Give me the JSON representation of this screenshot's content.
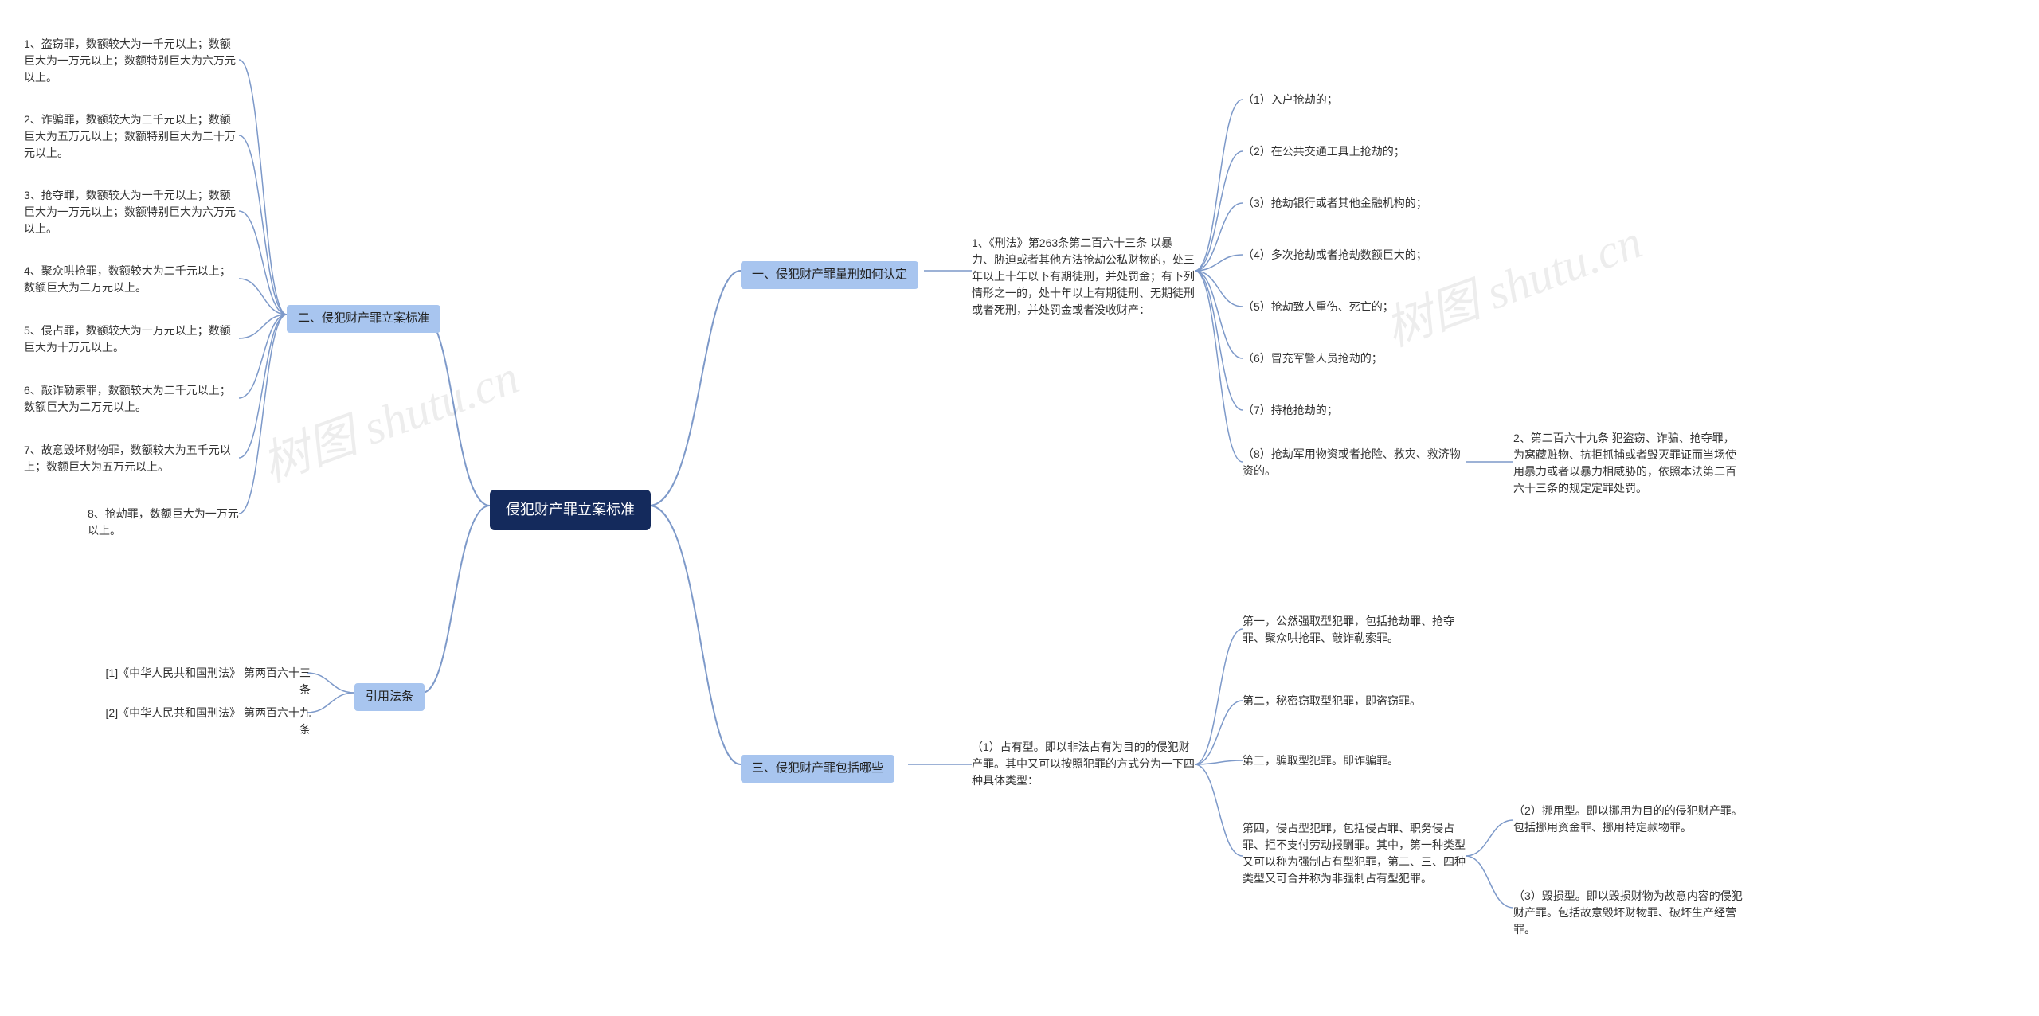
{
  "root": {
    "label": "侵犯财产罪立案标准",
    "bg_color": "#142a5c",
    "text_color": "#ffffff"
  },
  "section_style": {
    "bg_color": "#a8c5ef",
    "text_color": "#222222"
  },
  "connector_color": "#7d99c9",
  "background_color": "#ffffff",
  "watermark_text": "树图 shutu.cn",
  "section1": {
    "label": "一、侵犯财产罪量刑如何认定",
    "detail": "1、《刑法》第263条第二百六十三条 以暴力、胁迫或者其他方法抢劫公私财物的，处三年以上十年以下有期徒刑，并处罚金；有下列情形之一的，处十年以上有期徒刑、无期徒刑或者死刑，并处罚金或者没收财产：",
    "items": [
      "（1）入户抢劫的；",
      "（2）在公共交通工具上抢劫的；",
      "（3）抢劫银行或者其他金融机构的；",
      "（4）多次抢劫或者抢劫数额巨大的；",
      "（5）抢劫致人重伤、死亡的；",
      "（6）冒充军警人员抢劫的；",
      "（7）持枪抢劫的；",
      "（8）抢劫军用物资或者抢险、救灾、救济物资的。"
    ],
    "item8_note": "2、第二百六十九条 犯盗窃、诈骗、抢夺罪，为窝藏赃物、抗拒抓捕或者毁灭罪证而当场使用暴力或者以暴力相威胁的，依照本法第二百六十三条的规定定罪处罚。"
  },
  "section2": {
    "label": "二、侵犯财产罪立案标准",
    "items": [
      "1、盗窃罪，数额较大为一千元以上；数额巨大为一万元以上；数额特别巨大为六万元以上。",
      "2、诈骗罪，数额较大为三千元以上；数额巨大为五万元以上；数额特别巨大为二十万元以上。",
      "3、抢夺罪，数额较大为一千元以上；数额巨大为一万元以上；数额特别巨大为六万元以上。",
      "4、聚众哄抢罪，数额较大为二千元以上；数额巨大为二万元以上。",
      "5、侵占罪，数额较大为一万元以上；数额巨大为十万元以上。",
      "6、敲诈勒索罪，数额较大为二千元以上；数额巨大为二万元以上。",
      "7、故意毁坏财物罪，数额较大为五千元以上；数额巨大为五万元以上。",
      "8、抢劫罪，数额巨大为一万元以上。"
    ]
  },
  "section3": {
    "label": "三、侵犯财产罪包括哪些",
    "detail": "（1）占有型。即以非法占有为目的的侵犯财产罪。其中又可以按照犯罪的方式分为一下四种具体类型：",
    "items": [
      "第一，公然强取型犯罪，包括抢劫罪、抢夺罪、聚众哄抢罪、敲诈勒索罪。",
      "第二，秘密窃取型犯罪，即盗窃罪。",
      "第三，骗取型犯罪。即诈骗罪。",
      "第四，侵占型犯罪，包括侵占罪、职务侵占罪、拒不支付劳动报酬罪。其中，第一种类型又可以称为强制占有型犯罪，第二、三、四种类型又可合并称为非强制占有型犯罪。"
    ],
    "item4_notes": [
      "（2）挪用型。即以挪用为目的的侵犯财产罪。包括挪用资金罪、挪用特定款物罪。",
      "（3）毁损型。即以毁损财物为故意内容的侵犯财产罪。包括故意毁坏财物罪、破坏生产经营罪。"
    ]
  },
  "citations": {
    "label": "引用法条",
    "items": [
      "[1]《中华人民共和国刑法》 第两百六十三条",
      "[2]《中华人民共和国刑法》 第两百六十九条"
    ]
  }
}
